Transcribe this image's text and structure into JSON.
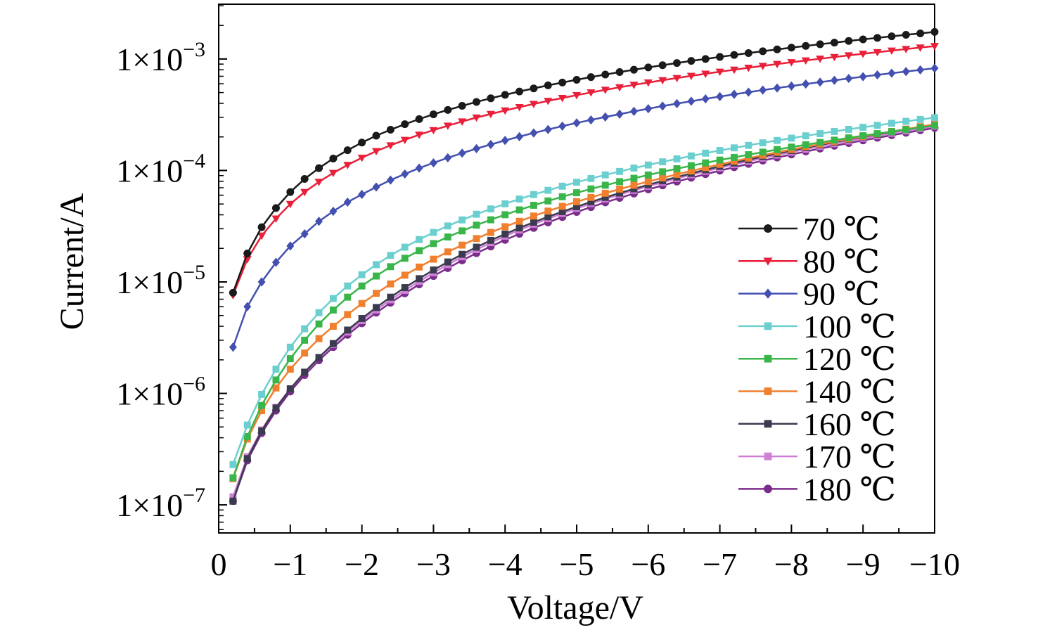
{
  "chart_data": {
    "type": "line",
    "xlabel": "Voltage/V",
    "ylabel": "Current/A",
    "x_scale": "linear",
    "x_reversed": true,
    "xlim": [
      0,
      -10
    ],
    "x_ticks": [
      0,
      -1,
      -2,
      -3,
      -4,
      -5,
      -6,
      -7,
      -8,
      -9,
      -10
    ],
    "x_tick_labels": [
      "0",
      "−1",
      "−2",
      "−3",
      "−4",
      "−5",
      "−6",
      "−7",
      "−8",
      "−9",
      "−10"
    ],
    "y_scale": "log",
    "ylim": [
      5.6e-08,
      0.0031
    ],
    "y_ticks": [
      1e-07,
      1e-06,
      1e-05,
      0.0001,
      0.001
    ],
    "y_tick_labels": [
      {
        "mantissa": "1×10",
        "exponent": "−7"
      },
      {
        "mantissa": "1×10",
        "exponent": "−6"
      },
      {
        "mantissa": "1×10",
        "exponent": "−5"
      },
      {
        "mantissa": "1×10",
        "exponent": "−4"
      },
      {
        "mantissa": "1×10",
        "exponent": "−3"
      }
    ],
    "grid": false,
    "legend_position": "bottom-right",
    "x": [
      -0.2,
      -0.4,
      -0.6,
      -0.8,
      -1.0,
      -1.2,
      -1.4,
      -1.6,
      -1.8,
      -2.0,
      -2.2,
      -2.4,
      -2.6,
      -2.8,
      -3.0,
      -3.2,
      -3.4,
      -3.6,
      -3.8,
      -4.0,
      -4.2,
      -4.4,
      -4.6,
      -4.8,
      -5.0,
      -5.2,
      -5.4,
      -5.6,
      -5.8,
      -6.0,
      -6.2,
      -6.4,
      -6.6,
      -6.8,
      -7.0,
      -7.2,
      -7.4,
      -7.6,
      -7.8,
      -8.0,
      -8.2,
      -8.4,
      -8.6,
      -8.8,
      -9.0,
      -9.2,
      -9.4,
      -9.6,
      -9.8,
      -10.0
    ],
    "series": [
      {
        "name": "70 ℃",
        "color": "#1a1a1a",
        "marker": "circle",
        "values": [
          8e-06,
          1.8e-05,
          3.1e-05,
          4.6e-05,
          6.4e-05,
          8.4e-05,
          0.000105,
          0.000128,
          0.000152,
          0.000178,
          0.000205,
          0.000232,
          0.00026,
          0.000289,
          0.000319,
          0.000349,
          0.00038,
          0.000412,
          0.000444,
          0.000477,
          0.000511,
          0.000545,
          0.00058,
          0.000615,
          0.000651,
          0.000688,
          0.000725,
          0.000763,
          0.000801,
          0.00084,
          0.00088,
          0.00092,
          0.000961,
          0.001,
          0.001044,
          0.001087,
          0.00113,
          0.001174,
          0.001219,
          0.001264,
          0.00131,
          0.001356,
          0.001403,
          0.001451,
          0.001499,
          0.001548,
          0.001597,
          0.001647,
          0.001698,
          0.00175
        ]
      },
      {
        "name": "80 ℃",
        "color": "#e8203a",
        "marker": "triangle-down",
        "values": [
          7.6e-06,
          1.6e-05,
          2.6e-05,
          3.7e-05,
          5e-05,
          6.4e-05,
          7.9e-05,
          9.5e-05,
          0.000112,
          0.00013,
          0.000149,
          0.000168,
          0.000188,
          0.000209,
          0.00023,
          0.000252,
          0.000275,
          0.000298,
          0.000321,
          0.000345,
          0.00037,
          0.000395,
          0.000421,
          0.000447,
          0.000474,
          0.000501,
          0.000529,
          0.000557,
          0.000586,
          0.000615,
          0.000645,
          0.000675,
          0.000706,
          0.000737,
          0.000769,
          0.000801,
          0.000834,
          0.000867,
          0.000901,
          0.000935,
          0.00097,
          0.001005,
          0.001041,
          0.001077,
          0.001114,
          0.001151,
          0.001189,
          0.001227,
          0.001266,
          0.001305
        ]
      },
      {
        "name": "90 ℃",
        "color": "#4450b0",
        "marker": "diamond",
        "values": [
          2.6e-06,
          6e-06,
          1e-05,
          1.5e-05,
          2.1e-05,
          2.7e-05,
          3.5e-05,
          4.3e-05,
          5.2e-05,
          6.1e-05,
          7.1e-05,
          8.2e-05,
          9.3e-05,
          0.000105,
          0.000117,
          0.00013,
          0.000143,
          0.000157,
          0.000171,
          0.000186,
          0.000201,
          0.000217,
          0.000233,
          0.00025,
          0.000267,
          0.000284,
          0.000302,
          0.00032,
          0.000339,
          0.000358,
          0.000378,
          0.000398,
          0.000418,
          0.000439,
          0.00046,
          0.000482,
          0.000504,
          0.000526,
          0.000549,
          0.000572,
          0.000596,
          0.00062,
          0.000644,
          0.000669,
          0.000694,
          0.00072,
          0.000746,
          0.000772,
          0.000799,
          0.000826
        ]
      },
      {
        "name": "100 ℃",
        "color": "#6ccfcf",
        "marker": "square",
        "values": [
          2.3e-07,
          5.2e-07,
          9.8e-07,
          1.65e-06,
          2.6e-06,
          3.8e-06,
          5.3e-06,
          7.1e-06,
          9.2e-06,
          1.16e-05,
          1.43e-05,
          1.73e-05,
          2.05e-05,
          2.4e-05,
          2.78e-05,
          3.18e-05,
          3.6e-05,
          4.05e-05,
          4.52e-05,
          5.02e-05,
          5.54e-05,
          6.08e-05,
          6.64e-05,
          7.23e-05,
          7.84e-05,
          8.47e-05,
          9.12e-05,
          9.8e-05,
          0.000105,
          0.000112,
          0.0001195,
          0.000127,
          0.000135,
          0.000143,
          0.000151,
          0.0001595,
          0.000168,
          0.000177,
          0.000186,
          0.000195,
          0.0002045,
          0.000214,
          0.000224,
          0.000234,
          0.000244,
          0.000254,
          0.000265,
          0.000276,
          0.000287,
          0.000298
        ]
      },
      {
        "name": "120 ℃",
        "color": "#3ab54a",
        "marker": "square",
        "values": [
          1.75e-07,
          4.1e-07,
          7.8e-07,
          1.32e-06,
          2.05e-06,
          3e-06,
          4.2e-06,
          5.6e-06,
          7.3e-06,
          9.2e-06,
          1.13e-05,
          1.37e-05,
          1.63e-05,
          1.91e-05,
          2.21e-05,
          2.53e-05,
          2.87e-05,
          3.23e-05,
          3.61e-05,
          4.01e-05,
          4.43e-05,
          4.87e-05,
          5.33e-05,
          5.81e-05,
          6.31e-05,
          6.83e-05,
          7.37e-05,
          7.93e-05,
          8.51e-05,
          9.11e-05,
          9.73e-05,
          0.0001037,
          0.0001103,
          0.000117,
          0.000124,
          0.000131,
          0.0001385,
          0.000146,
          0.000154,
          0.000162,
          0.00017,
          0.0001785,
          0.000187,
          0.000196,
          0.000205,
          0.000214,
          0.000223,
          0.000233,
          0.000243,
          0.000253
        ]
      },
      {
        "name": "140 ℃",
        "color": "#f07f2e",
        "marker": "square",
        "values": [
          1.72e-07,
          3.9e-07,
          7e-07,
          1.12e-06,
          1.65e-06,
          2.3e-06,
          3.1e-06,
          4e-06,
          5.1e-06,
          6.4e-06,
          7.9e-06,
          9.6e-06,
          1.15e-05,
          1.36e-05,
          1.6e-05,
          1.86e-05,
          2.14e-05,
          2.45e-05,
          2.78e-05,
          3.13e-05,
          3.5e-05,
          3.9e-05,
          4.32e-05,
          4.77e-05,
          5.24e-05,
          5.73e-05,
          6.25e-05,
          6.8e-05,
          7.37e-05,
          7.96e-05,
          8.58e-05,
          9.23e-05,
          9.9e-05,
          0.000106,
          0.0001135,
          0.000121,
          0.000129,
          0.000137,
          0.0001455,
          0.000154,
          0.000163,
          0.000172,
          0.000182,
          0.000192,
          0.000202,
          0.000213,
          0.000224,
          0.000235,
          0.000247,
          0.000259
        ]
      },
      {
        "name": "160 ℃",
        "color": "#3b3b4f",
        "marker": "square",
        "values": [
          1.08e-07,
          2.6e-07,
          4.6e-07,
          7.4e-07,
          1.1e-06,
          1.55e-06,
          2.1e-06,
          2.8e-06,
          3.7e-06,
          4.7e-06,
          5.9e-06,
          7.3e-06,
          8.9e-06,
          1.07e-05,
          1.28e-05,
          1.51e-05,
          1.77e-05,
          2.05e-05,
          2.36e-05,
          2.69e-05,
          3.05e-05,
          3.43e-05,
          3.84e-05,
          4.27e-05,
          4.73e-05,
          5.22e-05,
          5.73e-05,
          6.27e-05,
          6.84e-05,
          7.44e-05,
          8.07e-05,
          8.73e-05,
          9.42e-05,
          0.0001014,
          0.0001089,
          0.0001167,
          0.0001248,
          0.0001332,
          0.0001419,
          0.0001509,
          0.0001602,
          0.0001698,
          0.0001797,
          0.0001899,
          0.0002004,
          0.0002112,
          0.0002223,
          0.0002337,
          0.0002454,
          0.0002574
        ]
      },
      {
        "name": "170 ℃",
        "color": "#d07fd6",
        "marker": "square",
        "values": [
          1.18e-07,
          2.7e-07,
          4.7e-07,
          7.5e-07,
          1.1e-06,
          1.55e-06,
          2.1e-06,
          2.75e-06,
          3.55e-06,
          4.5e-06,
          5.6e-06,
          6.9e-06,
          8.4e-06,
          1.01e-05,
          1.21e-05,
          1.43e-05,
          1.68e-05,
          1.95e-05,
          2.25e-05,
          2.57e-05,
          2.92e-05,
          3.29e-05,
          3.69e-05,
          4.11e-05,
          4.56e-05,
          5.04e-05,
          5.54e-05,
          6.07e-05,
          6.63e-05,
          7.21e-05,
          7.82e-05,
          8.46e-05,
          9.13e-05,
          9.83e-05,
          0.0001056,
          0.0001131,
          0.0001209,
          0.000129,
          0.0001374,
          0.0001461,
          0.0001551,
          0.0001644,
          0.000174,
          0.0001839,
          0.0001941,
          0.0002046,
          0.0002154,
          0.0002265,
          0.0002379,
          0.0002496
        ]
      },
      {
        "name": "180 ℃",
        "color": "#7b2d8b",
        "marker": "circle",
        "values": [
          1.08e-07,
          2.5e-07,
          4.4e-07,
          7e-07,
          1.04e-06,
          1.46e-06,
          1.98e-06,
          2.6e-06,
          3.35e-06,
          4.25e-06,
          5.3e-06,
          6.5e-06,
          7.9e-06,
          9.5e-06,
          1.13e-05,
          1.33e-05,
          1.56e-05,
          1.81e-05,
          2.08e-05,
          2.38e-05,
          2.7e-05,
          3.05e-05,
          3.42e-05,
          3.82e-05,
          4.24e-05,
          4.69e-05,
          5.17e-05,
          5.67e-05,
          6.2e-05,
          6.76e-05,
          7.34e-05,
          7.95e-05,
          8.59e-05,
          9.26e-05,
          9.96e-05,
          0.0001069,
          0.0001145,
          0.0001224,
          0.0001306,
          0.0001391,
          0.0001479,
          0.000157,
          0.0001664,
          0.0001761,
          0.0001861,
          0.0001964,
          0.000207,
          0.0002179,
          0.0002291,
          0.0002406
        ]
      }
    ]
  }
}
